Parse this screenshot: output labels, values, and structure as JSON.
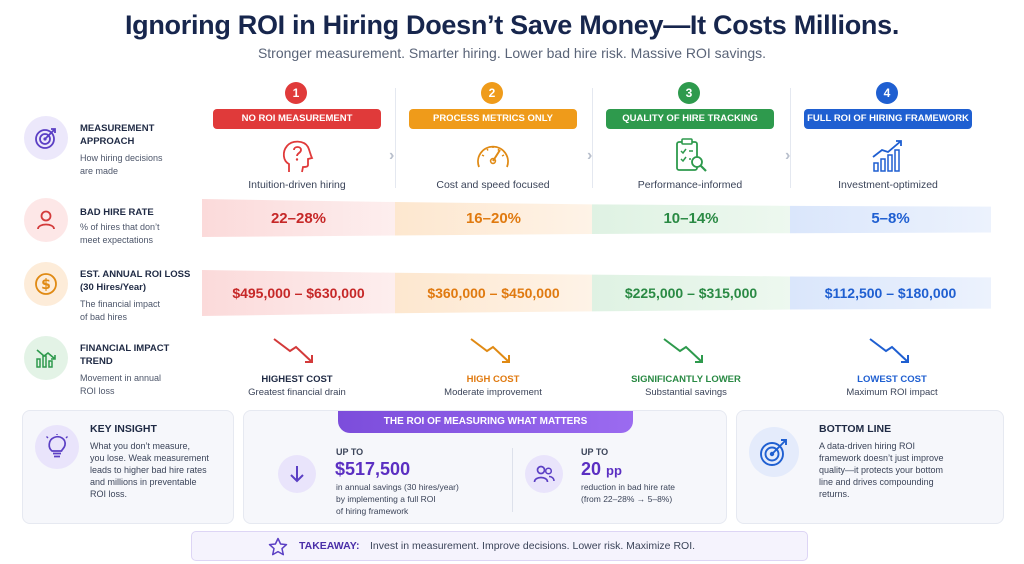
{
  "header": {
    "title": "Ignoring ROI in Hiring Doesn’t Save Money—It Costs Millions.",
    "subtitle": "Stronger measurement. Smarter hiring. Lower bad hire risk. Massive ROI savings."
  },
  "rows": {
    "approach": {
      "title_line1": "MEASUREMENT",
      "title_line2": "APPROACH",
      "desc_line1": "How hiring decisions",
      "desc_line2": "are made",
      "icon": "target-icon"
    },
    "bad_hire": {
      "title": "BAD HIRE RATE",
      "desc_line1": "% of hires that don’t",
      "desc_line2": "meet expectations",
      "icon": "person-icon"
    },
    "roi_loss": {
      "title_line1": "EST. ANNUAL ROI LOSS",
      "title_line2": "(30 Hires/Year)",
      "desc_line1": "The financial impact",
      "desc_line2": "of bad hires",
      "icon": "dollar-icon"
    },
    "trend": {
      "title_line1": "FINANCIAL IMPACT",
      "title_line2": "TREND",
      "desc_line1": "Movement in annual",
      "desc_line2": "ROI loss",
      "icon": "chart-down-icon"
    }
  },
  "stages": [
    {
      "num": "1",
      "label": "NO ROI MEASUREMENT",
      "color": "#e03a3a",
      "approach": "Intuition-driven hiring",
      "rate": "22–28%",
      "loss": "$495,000 – $630,000",
      "trend_title": "HIGHEST COST",
      "trend_desc": "Greatest financial drain",
      "icon": "head-question-icon"
    },
    {
      "num": "2",
      "label": "PROCESS METRICS ONLY",
      "color": "#ef9b1a",
      "approach": "Cost and speed focused",
      "rate": "16–20%",
      "loss": "$360,000 – $450,000",
      "trend_title": "HIGH COST",
      "trend_desc": "Moderate improvement",
      "icon": "speedometer-icon"
    },
    {
      "num": "3",
      "label": "QUALITY OF HIRE TRACKING",
      "color": "#2e9a4d",
      "approach": "Performance-informed",
      "rate": "10–14%",
      "loss": "$225,000 – $315,000",
      "trend_title": "SIGNIFICANTLY LOWER",
      "trend_desc": "Substantial savings",
      "icon": "clipboard-search-icon"
    },
    {
      "num": "4",
      "label": "FULL ROI OF HIRING FRAMEWORK",
      "color": "#1f5fd1",
      "approach": "Investment-optimized",
      "rate": "5–8%",
      "loss": "$112,500 – $180,000",
      "trend_title": "LOWEST COST",
      "trend_desc": "Maximum ROI impact",
      "icon": "growth-chart-icon"
    }
  ],
  "key_insight": {
    "title": "KEY INSIGHT",
    "lines": [
      "What you don’t measure,",
      "you lose. Weak measurement",
      "leads to higher bad hire rates",
      "and millions in preventable",
      "ROI loss."
    ],
    "icon": "lightbulb-icon"
  },
  "roi_card": {
    "banner": "THE ROI OF MEASURING WHAT MATTERS",
    "left": {
      "upto": "UP TO",
      "value": "$517,500",
      "lines": [
        "in annual savings (30 hires/year)",
        "by implementing a full ROI",
        "of hiring framework"
      ],
      "icon": "down-arrow-icon"
    },
    "right": {
      "upto": "UP TO",
      "value": "20",
      "unit": "pp",
      "lines": [
        "reduction in bad hire rate",
        "(from 22–28% → 5–8%)"
      ],
      "icon": "people-icon"
    }
  },
  "bottom_line": {
    "title": "BOTTOM LINE",
    "lines": [
      "A data-driven hiring ROI",
      "framework doesn’t just improve",
      "quality—it protects your bottom",
      "line and drives compounding",
      "returns."
    ],
    "icon": "target-arrow-icon"
  },
  "takeaway": {
    "label": "TAKEAWAY:",
    "text": "Invest in measurement. Improve decisions. Lower risk. Maximize ROI.",
    "icon": "star-icon"
  }
}
